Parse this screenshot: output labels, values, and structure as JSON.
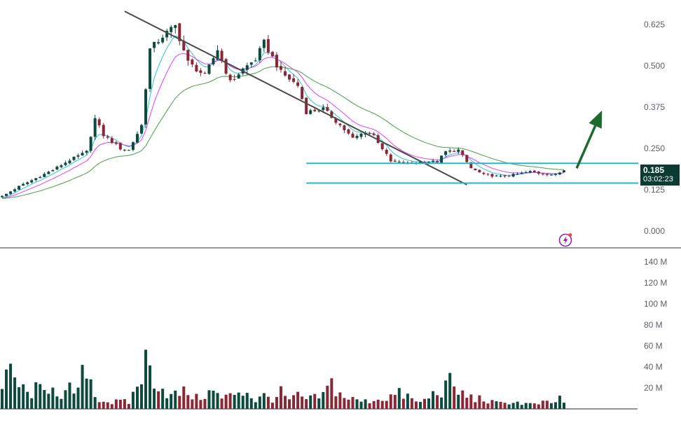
{
  "chart_data": {
    "type": "candlestick",
    "symbol": "",
    "title": "",
    "price_axis": {
      "ticks": [
        "0.625",
        "0.500",
        "0.375",
        "0.250",
        "0.125",
        "0.000"
      ],
      "tick_values": [
        0.625,
        0.5,
        0.375,
        0.25,
        0.125,
        0.0
      ],
      "range": [
        -0.05,
        0.69
      ]
    },
    "volume_axis": {
      "ticks": [
        "140 M",
        "120 M",
        "100 M",
        "80 M",
        "60 M",
        "40 M",
        "20 M"
      ],
      "tick_values": [
        140,
        120,
        100,
        80,
        60,
        40,
        20
      ],
      "unit": "M",
      "range": [
        0,
        150
      ]
    },
    "current_price": "0.185",
    "countdown": "03:02:23",
    "bar_count": 134,
    "close_anchors": [
      [
        0,
        0.105
      ],
      [
        4,
        0.135
      ],
      [
        8,
        0.16
      ],
      [
        12,
        0.185
      ],
      [
        16,
        0.215
      ],
      [
        20,
        0.24
      ],
      [
        22,
        0.34
      ],
      [
        24,
        0.29
      ],
      [
        28,
        0.25
      ],
      [
        30,
        0.245
      ],
      [
        33,
        0.32
      ],
      [
        35,
        0.55
      ],
      [
        38,
        0.59
      ],
      [
        41,
        0.62
      ],
      [
        44,
        0.51
      ],
      [
        48,
        0.47
      ],
      [
        51,
        0.55
      ],
      [
        54,
        0.45
      ],
      [
        57,
        0.49
      ],
      [
        60,
        0.52
      ],
      [
        62,
        0.57
      ],
      [
        66,
        0.48
      ],
      [
        70,
        0.44
      ],
      [
        72,
        0.36
      ],
      [
        76,
        0.37
      ],
      [
        80,
        0.32
      ],
      [
        83,
        0.28
      ],
      [
        86,
        0.3
      ],
      [
        88,
        0.29
      ],
      [
        92,
        0.21
      ],
      [
        96,
        0.205
      ],
      [
        100,
        0.21
      ],
      [
        103,
        0.21
      ],
      [
        105,
        0.24
      ],
      [
        108,
        0.245
      ],
      [
        111,
        0.19
      ],
      [
        114,
        0.17
      ],
      [
        118,
        0.165
      ],
      [
        121,
        0.17
      ],
      [
        125,
        0.18
      ],
      [
        127,
        0.175
      ],
      [
        131,
        0.17
      ],
      [
        133,
        0.185
      ]
    ],
    "moving_averages": [
      {
        "color": "#26c6da",
        "period": 5
      },
      {
        "color": "#e040fb",
        "period": 10
      },
      {
        "color": "#43a047",
        "period": 25
      }
    ],
    "volume_anchors": [
      [
        0,
        18
      ],
      [
        2,
        36
      ],
      [
        4,
        22
      ],
      [
        6,
        14
      ],
      [
        8,
        18
      ],
      [
        10,
        16
      ],
      [
        12,
        28
      ],
      [
        14,
        8
      ],
      [
        16,
        18
      ],
      [
        18,
        16
      ],
      [
        20,
        44
      ],
      [
        22,
        12
      ],
      [
        24,
        8
      ],
      [
        26,
        6
      ],
      [
        28,
        7
      ],
      [
        30,
        6
      ],
      [
        32,
        22
      ],
      [
        34,
        44
      ],
      [
        36,
        30
      ],
      [
        38,
        20
      ],
      [
        40,
        12
      ],
      [
        42,
        15
      ],
      [
        44,
        16
      ],
      [
        46,
        10
      ],
      [
        48,
        14
      ],
      [
        50,
        16
      ],
      [
        52,
        10
      ],
      [
        54,
        12
      ],
      [
        56,
        18
      ],
      [
        58,
        16
      ],
      [
        60,
        8
      ],
      [
        62,
        12
      ],
      [
        64,
        10
      ],
      [
        66,
        15
      ],
      [
        68,
        8
      ],
      [
        70,
        12
      ],
      [
        72,
        9
      ],
      [
        74,
        10
      ],
      [
        76,
        13
      ],
      [
        78,
        24
      ],
      [
        80,
        14
      ],
      [
        82,
        10
      ],
      [
        84,
        8
      ],
      [
        86,
        7
      ],
      [
        88,
        9
      ],
      [
        90,
        10
      ],
      [
        92,
        12
      ],
      [
        94,
        14
      ],
      [
        96,
        12
      ],
      [
        98,
        6
      ],
      [
        100,
        8
      ],
      [
        102,
        14
      ],
      [
        104,
        18
      ],
      [
        106,
        24
      ],
      [
        108,
        16
      ],
      [
        110,
        12
      ],
      [
        112,
        10
      ],
      [
        114,
        9
      ],
      [
        116,
        6
      ],
      [
        118,
        5
      ],
      [
        120,
        7
      ],
      [
        122,
        6
      ],
      [
        124,
        5
      ],
      [
        126,
        4
      ],
      [
        128,
        6
      ],
      [
        130,
        5
      ],
      [
        132,
        10
      ],
      [
        133,
        6
      ]
    ],
    "drawings": [
      {
        "kind": "trendline",
        "color": "#4a4a4a",
        "from": [
          29,
          0.665
        ],
        "to": [
          110,
          0.14
        ]
      },
      {
        "kind": "horizontal",
        "color": "#26b8c9",
        "y": 0.205,
        "from_index": 72,
        "to_index": 134
      },
      {
        "kind": "horizontal",
        "color": "#26b8c9",
        "y": 0.145,
        "from_index": 72,
        "to_index": 134
      },
      {
        "kind": "arrow",
        "color": "#1e6b2f",
        "from": [
          136,
          0.19
        ],
        "to": [
          142,
          0.365
        ]
      }
    ],
    "colors": {
      "up": "#0c4a3e",
      "down": "#8b2635",
      "volume_up": "#0c4a3e",
      "volume_down": "#8b2635",
      "badge": "#0c3b33",
      "flash_icon": "#8e24aa",
      "flash_dot": "#f44336"
    }
  },
  "icons": {
    "flash": "flash-icon"
  }
}
